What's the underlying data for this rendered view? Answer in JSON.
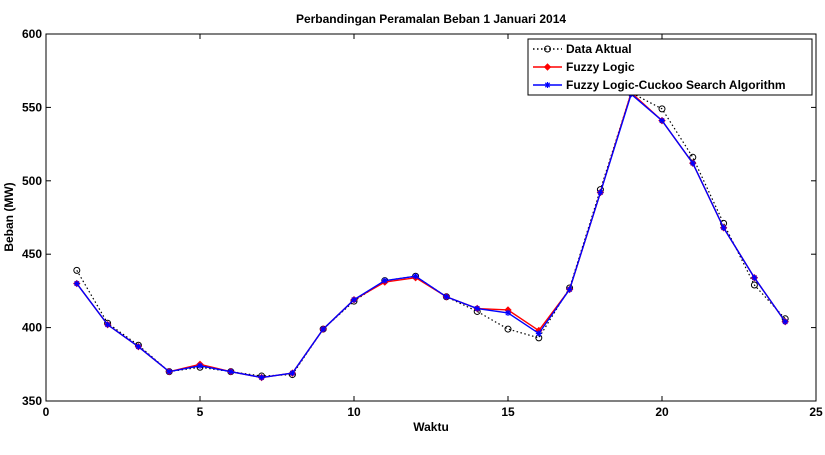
{
  "chart_data": {
    "type": "line",
    "title": "Perbandingan Peramalan Beban 1 Januari 2014",
    "xlabel": "Waktu",
    "ylabel": "Beban (MW)",
    "xlim": [
      0,
      25
    ],
    "ylim": [
      350,
      600
    ],
    "xticks": [
      0,
      5,
      10,
      15,
      20,
      25
    ],
    "yticks": [
      350,
      400,
      450,
      500,
      550,
      600
    ],
    "grid": false,
    "legend_position": "top-right",
    "x": [
      1,
      2,
      3,
      4,
      5,
      6,
      7,
      8,
      9,
      10,
      11,
      12,
      13,
      14,
      15,
      16,
      17,
      18,
      19,
      20,
      21,
      22,
      23,
      24
    ],
    "series": [
      {
        "name": "Data Aktual",
        "color": "#000000",
        "line_style": "dotted",
        "marker": "circle",
        "values": [
          439,
          403,
          388,
          370,
          373,
          370,
          367,
          368,
          399,
          418,
          432,
          435,
          421,
          411,
          399,
          393,
          427,
          494,
          560,
          549,
          516,
          471,
          429,
          406
        ]
      },
      {
        "name": "Fuzzy Logic",
        "color": "#ff0000",
        "line_style": "solid",
        "marker": "diamond",
        "values": [
          430,
          402,
          387,
          370,
          375,
          370,
          366,
          369,
          399,
          419,
          431,
          434,
          421,
          413,
          412,
          398,
          426,
          492,
          560,
          541,
          512,
          468,
          434,
          404
        ]
      },
      {
        "name": "Fuzzy Logic-Cuckoo Search Algorithm",
        "color": "#0000ff",
        "line_style": "solid",
        "marker": "star",
        "values": [
          430,
          402,
          387,
          370,
          374,
          370,
          366,
          369,
          399,
          419,
          432,
          435,
          421,
          413,
          410,
          396,
          426,
          492,
          559,
          541,
          512,
          468,
          434,
          404
        ]
      }
    ]
  }
}
